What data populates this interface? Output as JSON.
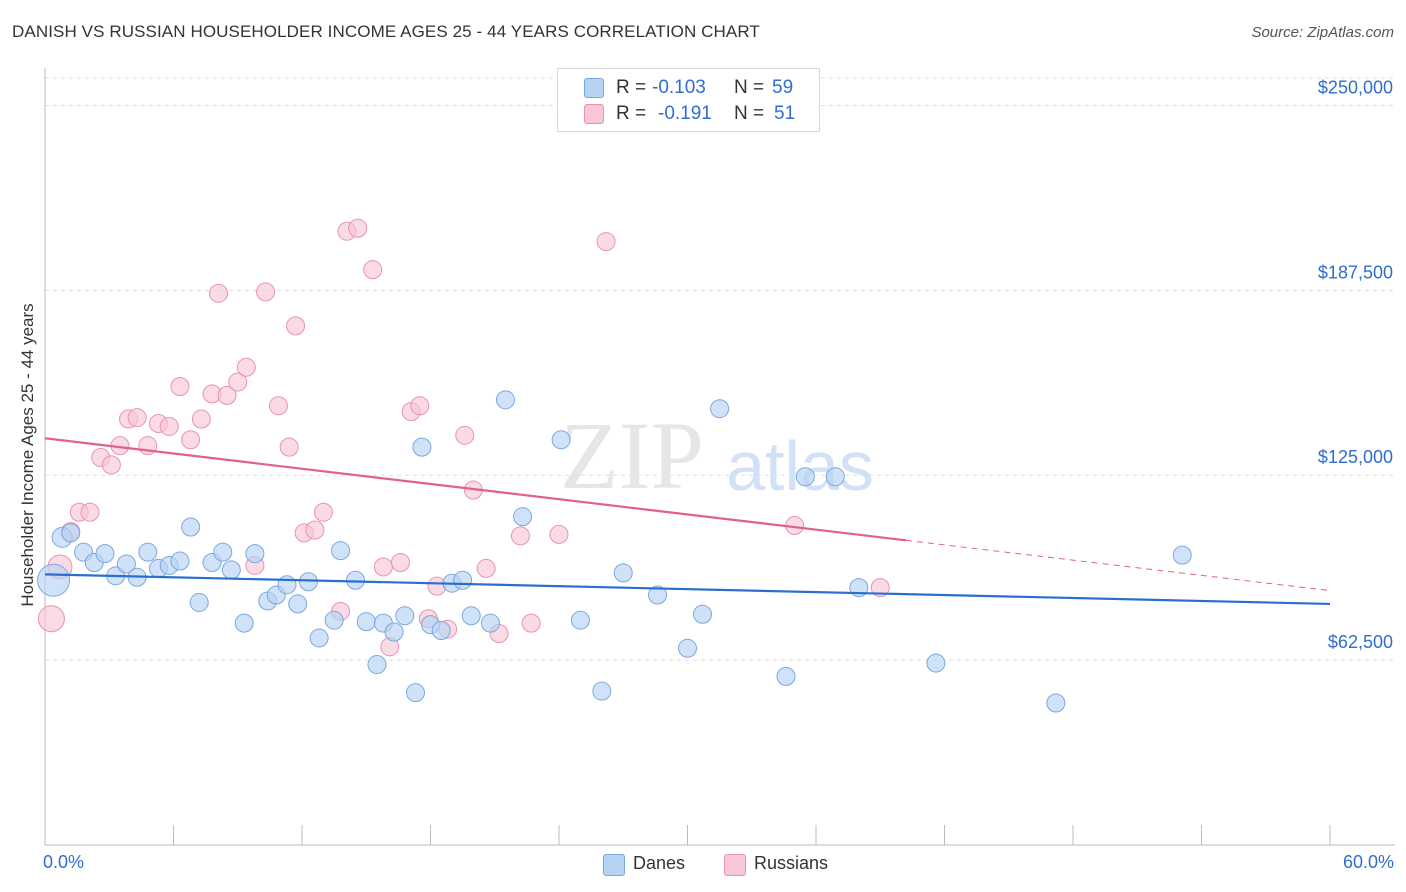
{
  "title": "DANISH VS RUSSIAN HOUSEHOLDER INCOME AGES 25 - 44 YEARS CORRELATION CHART",
  "source": "Source: ZipAtlas.com",
  "watermark": {
    "zip": "ZIP",
    "atlas": "atlas"
  },
  "colors": {
    "danes_fill": "#b7d3f4",
    "danes_stroke": "#7aa8de",
    "danes_line": "#2a6fd0",
    "russians_fill": "#f8c6d6",
    "russians_stroke": "#e993b1",
    "russians_line": "#e0628c",
    "axis_label": "#2f6ed0",
    "grid": "#dddddd"
  },
  "legend_top": {
    "danes": {
      "r_label": "R =",
      "r_value": "-0.103",
      "n_label": "N =",
      "n_value": "59"
    },
    "russians": {
      "r_label": "R =",
      "r_value": "-0.191",
      "n_label": "N =",
      "n_value": "51"
    }
  },
  "legend_bottom": {
    "danes": "Danes",
    "russians": "Russians"
  },
  "chart_data": {
    "type": "scatter",
    "title": "DANISH VS RUSSIAN HOUSEHOLDER INCOME AGES 25 - 44 YEARS CORRELATION CHART",
    "xlabel": "",
    "ylabel": "Householder Income Ages 25 - 44 years",
    "xlim": [
      0,
      60
    ],
    "ylim": [
      0,
      262000
    ],
    "x_tick_labels": [
      "0.0%",
      "60.0%"
    ],
    "y_ticks": [
      62500,
      125000,
      187500,
      250000
    ],
    "y_tick_labels": [
      "$62,500",
      "$125,000",
      "$187,500",
      "$250,000"
    ],
    "grid": true,
    "series": [
      {
        "name": "Danes",
        "r": -0.103,
        "n": 59,
        "trend": {
          "x0": 0,
          "y0": 91500,
          "x1": 60,
          "y1": 81500,
          "x_solid_end": 60
        },
        "points": [
          [
            0.4,
            89500,
            16
          ],
          [
            0.8,
            104000,
            10
          ],
          [
            1.2,
            105500,
            9
          ],
          [
            1.8,
            99000,
            9
          ],
          [
            2.3,
            95500,
            9
          ],
          [
            2.8,
            98500,
            9
          ],
          [
            3.3,
            91000,
            9
          ],
          [
            3.8,
            95000,
            9
          ],
          [
            4.3,
            90500,
            9
          ],
          [
            4.8,
            99000,
            9
          ],
          [
            5.3,
            93500,
            9
          ],
          [
            5.8,
            94500,
            9
          ],
          [
            6.3,
            96000,
            9
          ],
          [
            6.8,
            107500,
            9
          ],
          [
            7.2,
            82000,
            9
          ],
          [
            7.8,
            95500,
            9
          ],
          [
            8.3,
            99000,
            9
          ],
          [
            8.7,
            93000,
            9
          ],
          [
            9.3,
            75000,
            9
          ],
          [
            9.8,
            98500,
            9
          ],
          [
            10.4,
            82500,
            9
          ],
          [
            10.8,
            84500,
            9
          ],
          [
            11.3,
            88000,
            9
          ],
          [
            11.8,
            81500,
            9
          ],
          [
            12.3,
            89000,
            9
          ],
          [
            12.8,
            70000,
            9
          ],
          [
            13.5,
            76000,
            9
          ],
          [
            13.8,
            99500,
            9
          ],
          [
            14.5,
            89500,
            9
          ],
          [
            15.0,
            75500,
            9
          ],
          [
            15.5,
            61000,
            9
          ],
          [
            15.8,
            75000,
            9
          ],
          [
            16.3,
            72000,
            9
          ],
          [
            16.8,
            77500,
            9
          ],
          [
            17.3,
            51500,
            9
          ],
          [
            17.6,
            134500,
            9
          ],
          [
            18.0,
            74500,
            9
          ],
          [
            18.5,
            72500,
            9
          ],
          [
            19.0,
            88500,
            9
          ],
          [
            19.5,
            89500,
            9
          ],
          [
            19.9,
            77500,
            9
          ],
          [
            20.8,
            75000,
            9
          ],
          [
            21.5,
            150500,
            9
          ],
          [
            22.3,
            111000,
            9
          ],
          [
            24.1,
            137000,
            9
          ],
          [
            25.0,
            76000,
            9
          ],
          [
            26.0,
            52000,
            9
          ],
          [
            27.0,
            92000,
            9
          ],
          [
            28.6,
            84500,
            9
          ],
          [
            30.0,
            66500,
            9
          ],
          [
            30.7,
            78000,
            9
          ],
          [
            31.5,
            147500,
            9
          ],
          [
            34.6,
            57000,
            9
          ],
          [
            35.5,
            124500,
            9
          ],
          [
            36.9,
            124500,
            9
          ],
          [
            38.0,
            87000,
            9
          ],
          [
            41.6,
            61500,
            9
          ],
          [
            47.2,
            48000,
            9
          ],
          [
            53.1,
            98000,
            9
          ]
        ]
      },
      {
        "name": "Russians",
        "r": -0.191,
        "n": 51,
        "trend": {
          "x0": 0,
          "y0": 137500,
          "x1": 60,
          "y1": 86000,
          "x_solid_end": 40.2
        },
        "points": [
          [
            0.3,
            76500,
            13
          ],
          [
            0.7,
            94000,
            12
          ],
          [
            1.2,
            106000,
            9
          ],
          [
            1.6,
            112500,
            9
          ],
          [
            2.1,
            112500,
            9
          ],
          [
            2.6,
            131000,
            9
          ],
          [
            3.1,
            128500,
            9
          ],
          [
            3.5,
            135000,
            9
          ],
          [
            3.9,
            144000,
            9
          ],
          [
            4.3,
            144500,
            9
          ],
          [
            4.8,
            135000,
            9
          ],
          [
            5.3,
            142500,
            9
          ],
          [
            5.8,
            141500,
            9
          ],
          [
            6.3,
            155000,
            9
          ],
          [
            6.8,
            137000,
            9
          ],
          [
            7.3,
            144000,
            9
          ],
          [
            7.8,
            152500,
            9
          ],
          [
            8.1,
            186500,
            9
          ],
          [
            8.5,
            152000,
            9
          ],
          [
            9.0,
            156500,
            9
          ],
          [
            9.4,
            161500,
            9
          ],
          [
            9.8,
            94500,
            9
          ],
          [
            10.3,
            187000,
            9
          ],
          [
            10.9,
            148500,
            9
          ],
          [
            11.4,
            134500,
            9
          ],
          [
            11.7,
            175500,
            9
          ],
          [
            12.1,
            105500,
            9
          ],
          [
            12.6,
            106500,
            9
          ],
          [
            13.0,
            112500,
            9
          ],
          [
            13.8,
            79000,
            9
          ],
          [
            14.1,
            207500,
            9
          ],
          [
            14.6,
            208500,
            9
          ],
          [
            15.3,
            194500,
            9
          ],
          [
            15.8,
            94000,
            9
          ],
          [
            16.1,
            67000,
            9
          ],
          [
            16.6,
            95500,
            9
          ],
          [
            17.1,
            146500,
            9
          ],
          [
            17.5,
            148500,
            9
          ],
          [
            17.9,
            76500,
            9
          ],
          [
            18.3,
            87500,
            9
          ],
          [
            18.8,
            73000,
            9
          ],
          [
            19.6,
            138500,
            9
          ],
          [
            20.0,
            120000,
            9
          ],
          [
            20.6,
            93500,
            9
          ],
          [
            21.2,
            71500,
            9
          ],
          [
            22.2,
            104500,
            9
          ],
          [
            22.7,
            75000,
            9
          ],
          [
            24.0,
            105000,
            9
          ],
          [
            26.2,
            204000,
            9
          ],
          [
            35.0,
            108000,
            9
          ],
          [
            39.0,
            87000,
            9
          ]
        ]
      }
    ]
  }
}
